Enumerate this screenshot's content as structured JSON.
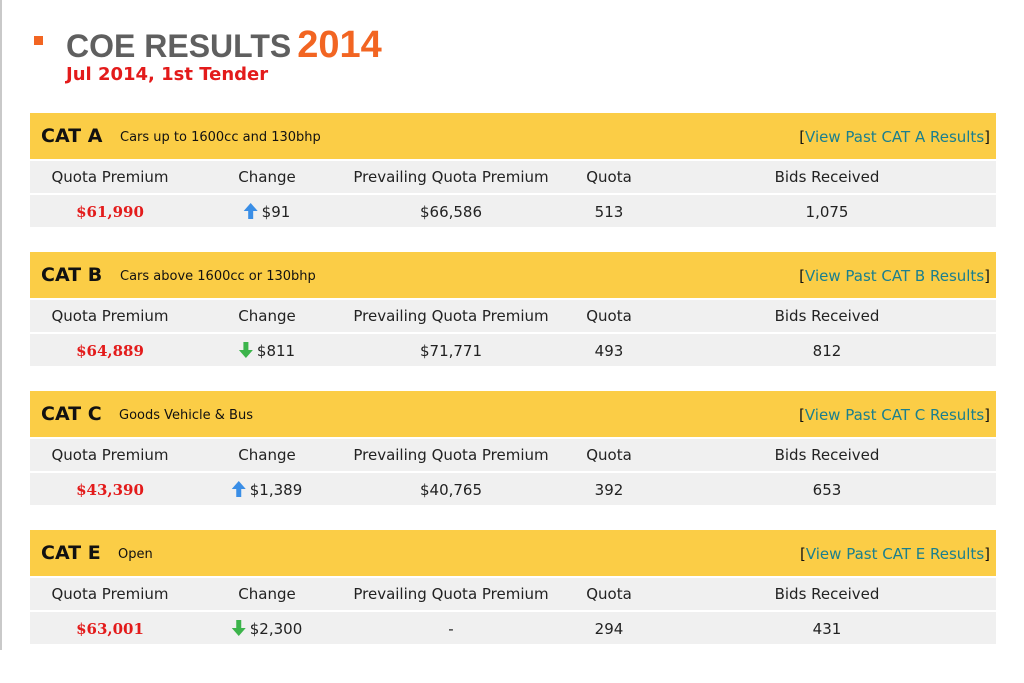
{
  "header": {
    "title_main": "COE RESULTS",
    "title_year": "2014",
    "subtitle": "Jul 2014, 1st Tender"
  },
  "columns": [
    "Quota Premium",
    "Change",
    "Prevailing Quota Premium",
    "Quota",
    "Bids Received"
  ],
  "colors": {
    "accent_orange": "#f26522",
    "header_yellow": "#fbcd46",
    "premium_red": "#e31b1b",
    "link_teal": "#1a7f8e",
    "arrow_up_blue": "#3a8ee6",
    "arrow_down_green": "#3cb44b"
  },
  "categories": [
    {
      "name": "CAT A",
      "desc": "Cars up to 1600cc and 130bhp",
      "link_open": "[",
      "link_text": "View Past CAT A Results",
      "link_close": "]",
      "quota_premium": "$61,990",
      "change_dir": "up",
      "change": "$91",
      "prevailing": "$66,586",
      "quota": "513",
      "bids": "1,075"
    },
    {
      "name": "CAT B",
      "desc": "Cars above 1600cc or 130bhp",
      "link_open": "[",
      "link_text": "View Past CAT B Results",
      "link_close": "]",
      "quota_premium": "$64,889",
      "change_dir": "down",
      "change": "$811",
      "prevailing": "$71,771",
      "quota": "493",
      "bids": "812"
    },
    {
      "name": "CAT C",
      "desc": "Goods Vehicle & Bus",
      "link_open": "[",
      "link_text": "View Past CAT C Results",
      "link_close": "]",
      "quota_premium": "$43,390",
      "change_dir": "up",
      "change": "$1,389",
      "prevailing": "$40,765",
      "quota": "392",
      "bids": "653"
    },
    {
      "name": "CAT E",
      "desc": "Open",
      "link_open": "[",
      "link_text": "View Past CAT E Results",
      "link_close": "]",
      "quota_premium": "$63,001",
      "change_dir": "down",
      "change": "$2,300",
      "prevailing": "-",
      "quota": "294",
      "bids": "431"
    }
  ]
}
